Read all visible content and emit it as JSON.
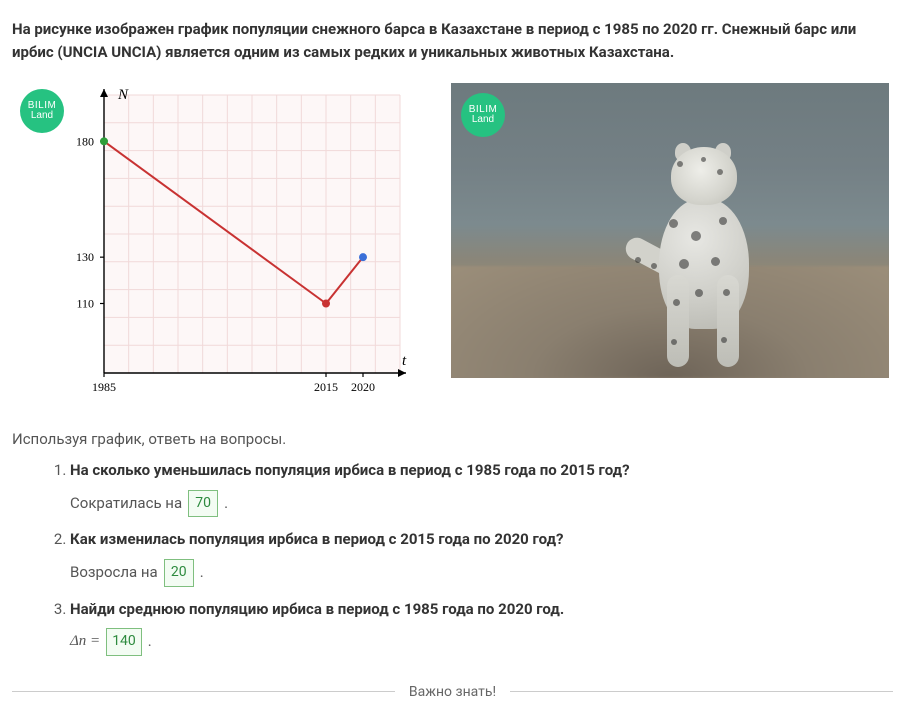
{
  "intro_text": "На рисунке изображен график популяции снежного барса в Казахстане в период с 1985 по 2020 гг. Снежный барс или ирбис (UNCIA UNCIA) является одним из самых редких и уникальных животных Казахстана.",
  "badge": {
    "line1": "BILIM",
    "line2": "Land",
    "color": "#26c281",
    "text_color": "#ffffff"
  },
  "chart": {
    "type": "line",
    "x_axis_label": "t",
    "y_axis_label": "N",
    "x_ticks": [
      "1985",
      "2015",
      "2020"
    ],
    "x_tick_positions": [
      0,
      30,
      35
    ],
    "xlim": [
      0,
      40
    ],
    "y_ticks": [
      110,
      130,
      180
    ],
    "ylim": [
      80,
      200
    ],
    "axis_color": "#000000",
    "grid_color": "#f1d9d9",
    "background_color": "#fdf7f7",
    "tick_label_color": "#000000",
    "tick_font_size": 12,
    "axis_label_font_size": 15,
    "axis_label_font_style": "italic",
    "series": [
      {
        "name": "decline",
        "x": [
          0,
          30
        ],
        "y": [
          180,
          110
        ],
        "color": "#c83232",
        "line_width": 2
      },
      {
        "name": "recovery",
        "x": [
          30,
          35
        ],
        "y": [
          110,
          130
        ],
        "color": "#c83232",
        "line_width": 2
      }
    ],
    "points": [
      {
        "x": 0,
        "y": 180,
        "color": "#2e9e3a",
        "radius": 4
      },
      {
        "x": 30,
        "y": 110,
        "color": "#c83232",
        "radius": 4
      },
      {
        "x": 35,
        "y": 130,
        "color": "#3a6fd8",
        "radius": 4
      }
    ]
  },
  "prompt_text": "Используя график, ответь на вопросы.",
  "questions": [
    {
      "q": "На сколько уменьшилась популяция ирбиса в период с 1985 года по 2015 год?",
      "answer_prefix": "Сократилась на",
      "answer_value": "70",
      "answer_suffix": "."
    },
    {
      "q": "Как изменилась популяция ирбиса в период с 2015 года по 2020 год?",
      "answer_prefix": "Возросла на",
      "answer_value": "20",
      "answer_suffix": "."
    },
    {
      "q": "Найди среднюю популяцию ирбиса в период с 1985 года по 2020 год.",
      "answer_prefix": "Δn =",
      "answer_value": "140",
      "answer_suffix": "."
    }
  ],
  "divider_label": "Важно знать!",
  "answer_box_style": {
    "border_color": "#7fbf7f",
    "bg": "#f3fcf3",
    "text_color": "#2d8a3e"
  }
}
